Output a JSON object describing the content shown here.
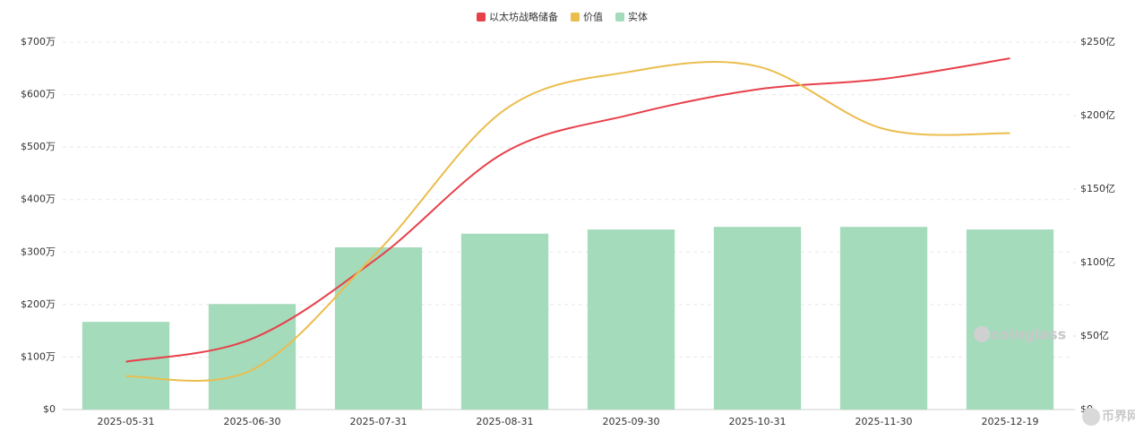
{
  "chart_data": {
    "type": "combo",
    "categories": [
      "2025-05-31",
      "2025-06-30",
      "2025-07-31",
      "2025-08-31",
      "2025-09-30",
      "2025-10-31",
      "2025-11-30",
      "2025-12-19"
    ],
    "series": [
      {
        "name": "以太坊战略储备",
        "type": "line",
        "color": "#e8404a",
        "values": [
          91,
          135,
          290,
          490,
          562,
          610,
          630,
          669
        ]
      },
      {
        "name": "价值",
        "type": "line",
        "color": "#ebbd4d",
        "axis": "y2",
        "values": [
          22.6,
          27,
          108,
          204,
          230,
          233.5,
          191,
          188
        ]
      },
      {
        "name": "实体",
        "type": "bar",
        "color": "#a3dbbb",
        "values": [
          167,
          201,
          309,
          335,
          343,
          348,
          348,
          343
        ]
      }
    ],
    "ylim": [
      0,
      700
    ],
    "yticks": [
      {
        "value": 0,
        "label": "$0"
      },
      {
        "value": 100,
        "label": "$100万"
      },
      {
        "value": 200,
        "label": "$200万"
      },
      {
        "value": 300,
        "label": "$300万"
      },
      {
        "value": 400,
        "label": "$400万"
      },
      {
        "value": 500,
        "label": "$500万"
      },
      {
        "value": 600,
        "label": "$600万"
      },
      {
        "value": 700,
        "label": "$700万"
      }
    ],
    "y2lim": [
      0,
      250
    ],
    "y2ticks": [
      {
        "value": 0,
        "label": "$0"
      },
      {
        "value": 50,
        "label": "$50亿"
      },
      {
        "value": 100,
        "label": "$100亿"
      },
      {
        "value": 150,
        "label": "$150亿"
      },
      {
        "value": 200,
        "label": "$200亿"
      },
      {
        "value": 250,
        "label": "$250亿"
      }
    ],
    "grid": true,
    "legend": "top",
    "watermark": "coinglass",
    "logo": "币界网"
  }
}
